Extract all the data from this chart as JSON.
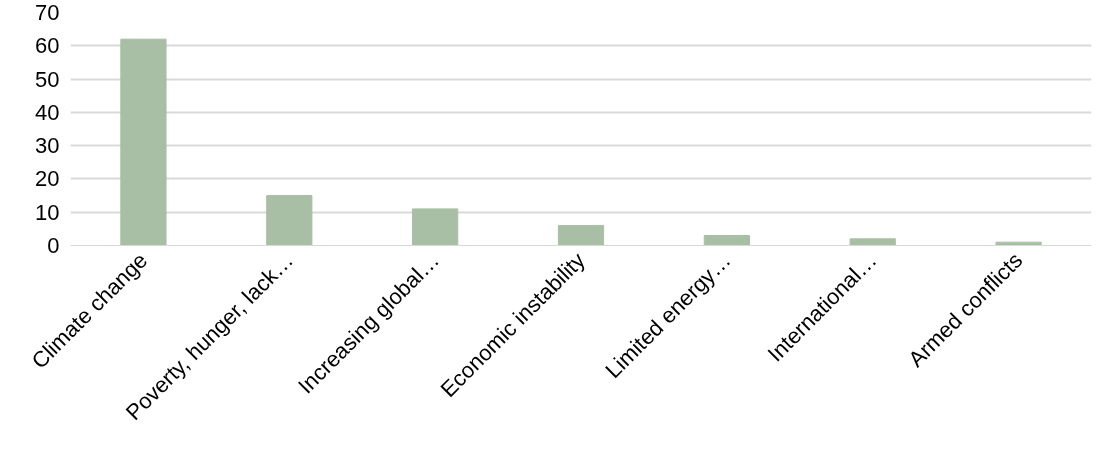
{
  "chart_data": {
    "type": "bar",
    "categories": [
      "Climate change",
      "Poverty, hunger, lack…",
      "Increasing global…",
      "Economic instability",
      "Limited energy…",
      "International…",
      "Armed conflicts"
    ],
    "values": [
      62,
      15,
      11,
      6,
      3,
      2,
      1
    ],
    "color": "#a8bfa5",
    "ylim": [
      0,
      70
    ],
    "yticks": [
      0,
      10,
      20,
      30,
      40,
      50,
      60,
      70
    ],
    "grid": "y"
  }
}
